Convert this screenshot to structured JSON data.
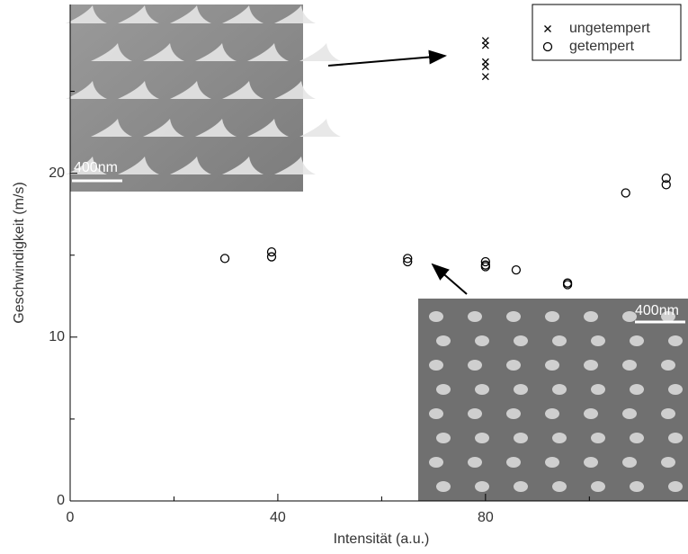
{
  "chart_data": {
    "type": "scatter",
    "x_label": "Intensität (a.u.)",
    "y_label": "Geschwindigkeit (m/s)",
    "xlim": [
      0,
      119
    ],
    "ylim": [
      0,
      30.3
    ],
    "xticks": [
      0,
      40,
      80
    ],
    "xminorticks": [
      20,
      60,
      100
    ],
    "yticks": [
      0,
      10,
      20
    ],
    "yminorticks": [
      5,
      15,
      25
    ],
    "legend": "upper right",
    "series": [
      {
        "name": "ungetempert",
        "marker": "x",
        "color": "#000000",
        "x": [
          80,
          80,
          80,
          80,
          80
        ],
        "values": [
          28.1,
          27.8,
          26.8,
          26.5,
          25.9
        ]
      },
      {
        "name": "getempert",
        "marker": "o",
        "color": "#000000",
        "x": [
          29.8,
          38.8,
          38.8,
          65,
          65,
          80,
          80,
          80,
          85.9,
          95.8,
          95.8,
          107,
          114.8,
          114.8
        ],
        "values": [
          14.8,
          15.2,
          14.9,
          14.8,
          14.6,
          14.6,
          14.4,
          14.3,
          14.1,
          13.3,
          13.2,
          18.8,
          19.7,
          19.3
        ]
      }
    ],
    "insets": [
      {
        "scale_label": "400nm"
      },
      {
        "scale_label": "400nm"
      }
    ]
  }
}
